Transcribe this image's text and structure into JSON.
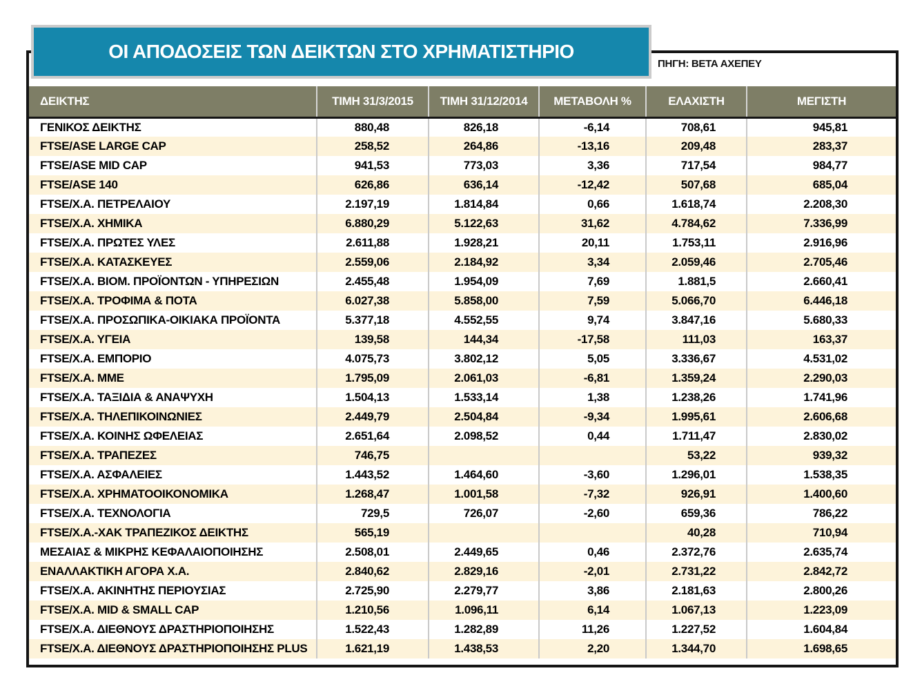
{
  "header": {
    "title": "ΟΙ ΑΠΟΔΟΣΕΙΣ ΤΩΝ ΔΕΙΚΤΩΝ ΣΤΟ ΧΡΗΜΑΤΙΣΤΗΡΙΟ",
    "source": "ΠΗΓΗ: ΒΕΤΑ ΑΧΕΠΕΥ"
  },
  "colors": {
    "title_bg": "#1587ac",
    "title_border": "#cbcbcb",
    "header_bg": "#7e7e66",
    "stripe": "#fdf3da",
    "frame": "#141414",
    "separator": "#c9c9c9"
  },
  "chart_data": {
    "type": "table",
    "title": "ΟΙ ΑΠΟΔΟΣΕΙΣ ΤΩΝ ΔΕΙΚΤΩΝ ΣΤΟ ΧΡΗΜΑΤΙΣΤΗΡΙΟ",
    "columns": [
      "ΔΕΙΚΤΗΣ",
      "ΤΙΜΗ 31/3/2015",
      "ΤΙΜΗ 31/12/2014",
      "ΜΕΤΑΒΟΛΗ %",
      "ΕΛΑΧΙΣΤΗ",
      "ΜΕΓΙΣΤΗ"
    ],
    "rows": [
      [
        "ΓΕΝΙΚΟΣ ΔΕΙΚΤΗΣ",
        "880,48",
        "826,18",
        "-6,14",
        "708,61",
        "945,81"
      ],
      [
        "FTSE/ASE LARGE CAP",
        "258,52",
        "264,86",
        "-13,16",
        "209,48",
        "283,37"
      ],
      [
        "FTSE/ASE MID CAP",
        "941,53",
        "773,03",
        "3,36",
        "717,54",
        "984,77"
      ],
      [
        "FTSE/ASE 140",
        "626,86",
        "636,14",
        "-12,42",
        "507,68",
        "685,04"
      ],
      [
        "FTSE/Χ.Α. ΠΕΤΡΕΛΑΙΟΥ",
        "2.197,19",
        "1.814,84",
        "0,66",
        "1.618,74",
        "2.208,30"
      ],
      [
        "FTSE/Χ.Α. ΧΗΜΙΚΑ",
        "6.880,29",
        "5.122,63",
        "31,62",
        "4.784,62",
        "7.336,99"
      ],
      [
        "FTSE/Χ.Α. ΠΡΩΤΕΣ ΥΛΕΣ",
        "2.611,88",
        "1.928,21",
        "20,11",
        "1.753,11",
        "2.916,96"
      ],
      [
        "FTSE/Χ.Α. ΚΑΤΑΣΚΕΥΕΣ",
        "2.559,06",
        "2.184,92",
        "3,34",
        "2.059,46",
        "2.705,46"
      ],
      [
        "FTSE/Χ.Α. ΒΙΟΜ. ΠΡΟΪΟΝΤΩΝ - ΥΠΗΡΕΣΙΩΝ",
        "2.455,48",
        "1.954,09",
        "7,69",
        "1.881,5",
        "2.660,41"
      ],
      [
        "FTSE/Χ.Α. ΤΡΟΦΙΜΑ & ΠΟΤΑ",
        "6.027,38",
        "5.858,00",
        "7,59",
        "5.066,70",
        "6.446,18"
      ],
      [
        "FTSE/Χ.Α. ΠΡΟΣΩΠΙΚΑ-ΟΙΚΙΑΚΑ ΠΡΟΪΟΝΤΑ",
        "5.377,18",
        "4.552,55",
        "9,74",
        "3.847,16",
        "5.680,33"
      ],
      [
        "FTSE/Χ.Α. ΥΓΕΙΑ",
        "139,58",
        "144,34",
        "-17,58",
        "111,03",
        "163,37"
      ],
      [
        "FTSE/Χ.Α. ΕΜΠΟΡΙΟ",
        "4.075,73",
        "3.802,12",
        "5,05",
        "3.336,67",
        "4.531,02"
      ],
      [
        "FTSE/Χ.Α. ΜΜΕ",
        "1.795,09",
        "2.061,03",
        "-6,81",
        "1.359,24",
        "2.290,03"
      ],
      [
        "FTSE/Χ.Α. ΤΑΞΙΔΙΑ & ΑΝΑΨΥΧΗ",
        "1.504,13",
        "1.533,14",
        "1,38",
        "1.238,26",
        "1.741,96"
      ],
      [
        "FTSE/Χ.Α. ΤΗΛΕΠΙΚΟΙΝΩΝΙΕΣ",
        "2.449,79",
        "2.504,84",
        "-9,34",
        "1.995,61",
        "2.606,68"
      ],
      [
        "FTSE/Χ.Α. ΚΟΙΝΗΣ ΩΦΕΛΕΙΑΣ",
        "2.651,64",
        "2.098,52",
        "0,44",
        "1.711,47",
        "2.830,02"
      ],
      [
        "FTSE/Χ.Α. ΤΡΑΠΕΖΕΣ",
        "746,75",
        "",
        "",
        "53,22",
        "939,32"
      ],
      [
        "FTSE/Χ.Α. ΑΣΦΑΛΕΙΕΣ",
        "1.443,52",
        "1.464,60",
        "-3,60",
        "1.296,01",
        "1.538,35"
      ],
      [
        "FTSE/Χ.Α. ΧΡΗΜΑΤΟΟΙΚΟΝΟΜΙΚΑ",
        "1.268,47",
        "1.001,58",
        "-7,32",
        "926,91",
        "1.400,60"
      ],
      [
        "FTSE/Χ.Α. ΤΕΧΝΟΛΟΓΙΑ",
        "729,5",
        "726,07",
        "-2,60",
        "659,36",
        "786,22"
      ],
      [
        "FTSE/Χ.Α.-ΧΑΚ ΤΡΑΠΕΖΙΚΟΣ ΔΕΙΚΤΗΣ",
        "565,19",
        "",
        "",
        "40,28",
        "710,94"
      ],
      [
        "ΜΕΣΑΙΑΣ & ΜΙΚΡΗΣ ΚΕΦΑΛΑΙΟΠΟΙΗΣΗΣ",
        "2.508,01",
        "2.449,65",
        "0,46",
        "2.372,76",
        "2.635,74"
      ],
      [
        "ΕΝΑΛΛΑΚΤΙΚΗ ΑΓΟΡΑ Χ.Α.",
        "2.840,62",
        "2.829,16",
        "-2,01",
        "2.731,22",
        "2.842,72"
      ],
      [
        "FTSE/Χ.Α. ΑΚΙΝΗΤΗΣ ΠΕΡΙΟΥΣΙΑΣ",
        "2.725,90",
        "2.279,77",
        "3,86",
        "2.181,63",
        "2.800,26"
      ],
      [
        "FTSE/Χ.Α. MID & SMALL CAP",
        "1.210,56",
        "1.096,11",
        "6,14",
        "1.067,13",
        "1.223,09"
      ],
      [
        "FTSE/Χ.Α. ΔΙΕΘΝΟΥΣ ΔΡΑΣΤΗΡΙΟΠΟΙΗΣΗΣ",
        "1.522,43",
        "1.282,89",
        "11,26",
        "1.227,52",
        "1.604,84"
      ],
      [
        "FTSE/Χ.Α. ΔΙΕΘΝΟΥΣ ΔΡΑΣΤΗΡΙΟΠΟΙΗΣΗΣ PLUS",
        "1.621,19",
        "1.438,53",
        "2,20",
        "1.344,70",
        "1.698,65"
      ]
    ]
  }
}
